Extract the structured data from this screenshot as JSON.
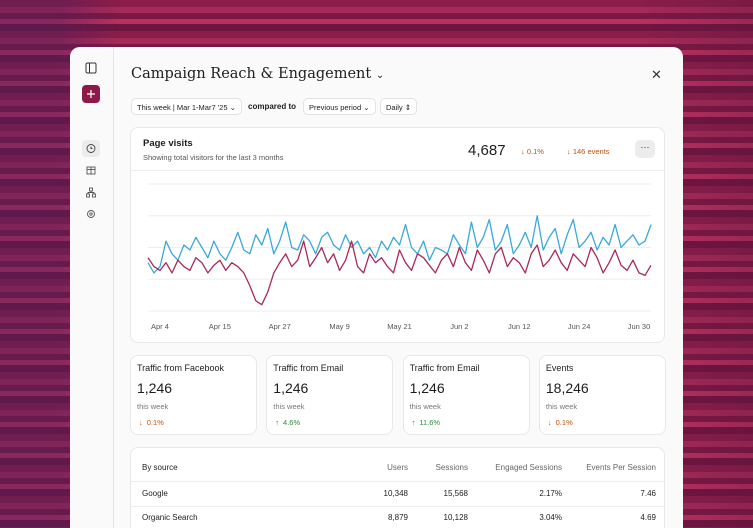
{
  "header": {
    "title": "Campaign Reach & Engagement",
    "date_range": "This week | Mar 1-Mar7 '25",
    "compare_label": "compared to",
    "compare_period": "Previous period",
    "interval": "Daily"
  },
  "summary": {
    "title": "Page visits",
    "subtitle": "Showing total visitors for the last 3 months",
    "total": "4,687",
    "change": "0.1%",
    "events": "146 events",
    "change_color": "#c2540a"
  },
  "chart_data": {
    "type": "line",
    "categories": [
      null,
      null,
      "Apr 4",
      null,
      null,
      null,
      null,
      null,
      null,
      null,
      null,
      null,
      "Apr 15",
      null,
      null,
      null,
      null,
      null,
      null,
      null,
      null,
      null,
      "Apr 27",
      null,
      null,
      null,
      null,
      null,
      null,
      null,
      null,
      null,
      "May 9",
      null,
      null,
      null,
      null,
      null,
      null,
      null,
      null,
      null,
      "May 21",
      null,
      null,
      null,
      null,
      null,
      null,
      null,
      null,
      null,
      "Jun 2",
      null,
      null,
      null,
      null,
      null,
      null,
      null,
      null,
      null,
      "Jun 12",
      null,
      null,
      null,
      null,
      null,
      null,
      null,
      null,
      null,
      "Jun 24",
      null,
      null,
      null,
      null,
      null,
      null,
      null,
      null,
      null,
      "Jun 30",
      null,
      null
    ],
    "ylim": [
      0,
      100
    ],
    "grid": true,
    "series": [
      {
        "color": "#3aa8d8",
        "values": [
          38,
          30,
          35,
          55,
          45,
          40,
          52,
          48,
          58,
          50,
          42,
          55,
          45,
          40,
          50,
          62,
          48,
          45,
          60,
          52,
          65,
          45,
          55,
          70,
          50,
          48,
          60,
          55,
          45,
          58,
          62,
          52,
          48,
          60,
          50,
          55,
          45,
          50,
          42,
          55,
          48,
          58,
          52,
          68,
          50,
          45,
          55,
          40,
          50,
          48,
          45,
          60,
          52,
          45,
          70,
          50,
          58,
          72,
          48,
          55,
          68,
          45,
          52,
          62,
          50,
          75,
          48,
          58,
          65,
          45,
          60,
          72,
          50,
          55,
          62,
          48,
          58,
          52,
          68,
          50,
          55,
          60,
          52,
          55,
          68
        ]
      },
      {
        "color": "#a8285a",
        "values": [
          42,
          35,
          32,
          38,
          30,
          40,
          35,
          32,
          42,
          38,
          30,
          36,
          40,
          32,
          38,
          35,
          30,
          20,
          8,
          5,
          15,
          30,
          38,
          45,
          35,
          40,
          55,
          35,
          42,
          50,
          38,
          45,
          32,
          40,
          55,
          35,
          30,
          45,
          38,
          42,
          35,
          30,
          48,
          38,
          32,
          45,
          42,
          36,
          30,
          40,
          45,
          35,
          50,
          38,
          32,
          48,
          40,
          30,
          45,
          50,
          35,
          42,
          38,
          30,
          45,
          52,
          35,
          40,
          48,
          38,
          32,
          45,
          40,
          35,
          50,
          42,
          30,
          38,
          48,
          36,
          32,
          40,
          30,
          28,
          36
        ]
      }
    ]
  },
  "cards": [
    {
      "title": "Traffic from Facebook",
      "value": "1,246",
      "period": "this week",
      "change": "0.1%",
      "arrow": "↓",
      "color": "#c2540a"
    },
    {
      "title": "Traffic from Email",
      "value": "1,246",
      "period": "this week",
      "change": "4.6%",
      "arrow": "↑",
      "color": "#2f8a3e"
    },
    {
      "title": "Traffic from Email",
      "value": "1,246",
      "period": "this week",
      "change": "11.6%",
      "arrow": "↑",
      "color": "#2f8a3e"
    },
    {
      "title": "Events",
      "value": "18,246",
      "period": "this week",
      "change": "0.1%",
      "arrow": "↓",
      "color": "#c2540a"
    }
  ],
  "table": {
    "columns": [
      "By source",
      "Users",
      "Sessions",
      "Engaged Sessions",
      "Events Per Session"
    ],
    "rows": [
      [
        "Google",
        "10,348",
        "15,568",
        "2.17%",
        "7.46"
      ],
      [
        "Organic Search",
        "8,879",
        "10,128",
        "3.04%",
        "4.69"
      ]
    ]
  }
}
